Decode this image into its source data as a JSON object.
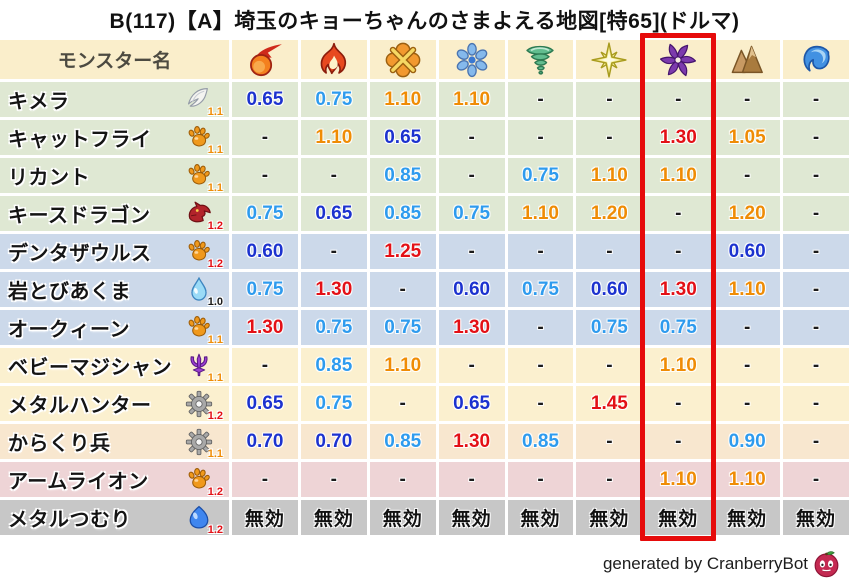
{
  "title": "B(117)【A】埼玉のキョーちゃんのさまよえる地図[特65](ドルマ)",
  "chart_data": {
    "type": "table",
    "name_header": "モンスター名",
    "columns": [
      {
        "icon": "fireball-icon"
      },
      {
        "icon": "flame-icon"
      },
      {
        "icon": "burst-icon"
      },
      {
        "icon": "snowflake-icon"
      },
      {
        "icon": "tornado-icon"
      },
      {
        "icon": "spark-icon"
      },
      {
        "icon": "pinwheel-icon"
      },
      {
        "icon": "rock-icon"
      },
      {
        "icon": "wave-icon"
      }
    ],
    "highlighted_column_index": 6,
    "rows": [
      {
        "name": "キメラ",
        "family_icon": "wing-icon",
        "family_multiplier": "1.1",
        "group": "green",
        "values": [
          "0.65",
          "0.75",
          "1.10",
          "1.10",
          "-",
          "-",
          "-",
          "-",
          "-"
        ]
      },
      {
        "name": "キャットフライ",
        "family_icon": "paw-icon",
        "family_multiplier": "1.1",
        "group": "green",
        "values": [
          "-",
          "1.10",
          "0.65",
          "-",
          "-",
          "-",
          "1.30",
          "1.05",
          "-"
        ]
      },
      {
        "name": "リカント",
        "family_icon": "paw-icon",
        "family_multiplier": "1.1",
        "group": "green",
        "values": [
          "-",
          "-",
          "0.85",
          "-",
          "0.75",
          "1.10",
          "1.10",
          "-",
          "-"
        ]
      },
      {
        "name": "キースドラゴン",
        "family_icon": "dragon-icon",
        "family_multiplier": "1.2",
        "group": "green",
        "values": [
          "0.75",
          "0.65",
          "0.85",
          "0.75",
          "1.10",
          "1.20",
          "-",
          "1.20",
          "-"
        ]
      },
      {
        "name": "デンタザウルス",
        "family_icon": "paw-icon",
        "family_multiplier": "1.2",
        "group": "blue",
        "values": [
          "0.60",
          "-",
          "1.25",
          "-",
          "-",
          "-",
          "-",
          "0.60",
          "-"
        ]
      },
      {
        "name": "岩とびあくま",
        "family_icon": "waterdrop-icon",
        "family_multiplier": "1.0",
        "group": "blue",
        "values": [
          "0.75",
          "1.30",
          "-",
          "0.60",
          "0.75",
          "0.60",
          "1.30",
          "1.10",
          "-"
        ]
      },
      {
        "name": "オークィーン",
        "family_icon": "paw-icon",
        "family_multiplier": "1.1",
        "group": "blue",
        "values": [
          "1.30",
          "0.75",
          "0.75",
          "1.30",
          "-",
          "0.75",
          "0.75",
          "-",
          "-"
        ]
      },
      {
        "name": "ベビーマジシャン",
        "family_icon": "trident-icon",
        "family_multiplier": "1.1",
        "group": "cream",
        "values": [
          "-",
          "0.85",
          "1.10",
          "-",
          "-",
          "-",
          "1.10",
          "-",
          "-"
        ]
      },
      {
        "name": "メタルハンター",
        "family_icon": "gear-icon",
        "family_multiplier": "1.2",
        "group": "cream",
        "values": [
          "0.65",
          "0.75",
          "-",
          "0.65",
          "-",
          "1.45",
          "-",
          "-",
          "-"
        ]
      },
      {
        "name": "からくり兵",
        "family_icon": "gear-icon",
        "family_multiplier": "1.1",
        "group": "peach",
        "values": [
          "0.70",
          "0.70",
          "0.85",
          "1.30",
          "0.85",
          "-",
          "-",
          "0.90",
          "-"
        ]
      },
      {
        "name": "アームライオン",
        "family_icon": "paw-icon",
        "family_multiplier": "1.2",
        "group": "pink",
        "values": [
          "-",
          "-",
          "-",
          "-",
          "-",
          "-",
          "1.10",
          "1.10",
          "-"
        ]
      },
      {
        "name": "メタルつむり",
        "family_icon": "slime-icon",
        "family_multiplier": "1.2",
        "group": "gray",
        "values": [
          "無効",
          "無効",
          "無効",
          "無効",
          "無効",
          "無効",
          "無効",
          "無効",
          "無効"
        ]
      }
    ],
    "immune_label": "無効"
  },
  "colors": {
    "header_bg": "#faeecb",
    "row_green": "#dfe8d3",
    "row_blue": "#ccd9ea",
    "row_cream": "#fbf0cf",
    "row_peach": "#f8e7cf",
    "row_pink": "#eed4d6",
    "row_gray": "#c7c7c7",
    "value_strong_resist": "#1c32cf",
    "value_resist": "#2e9bee",
    "value_weak": "#ef8c05",
    "value_very_weak": "#e31016",
    "highlight_box": "#e60b0b"
  },
  "footer": {
    "credit": "generated by CranberryBot",
    "icon": "cranberry-bot-icon"
  }
}
